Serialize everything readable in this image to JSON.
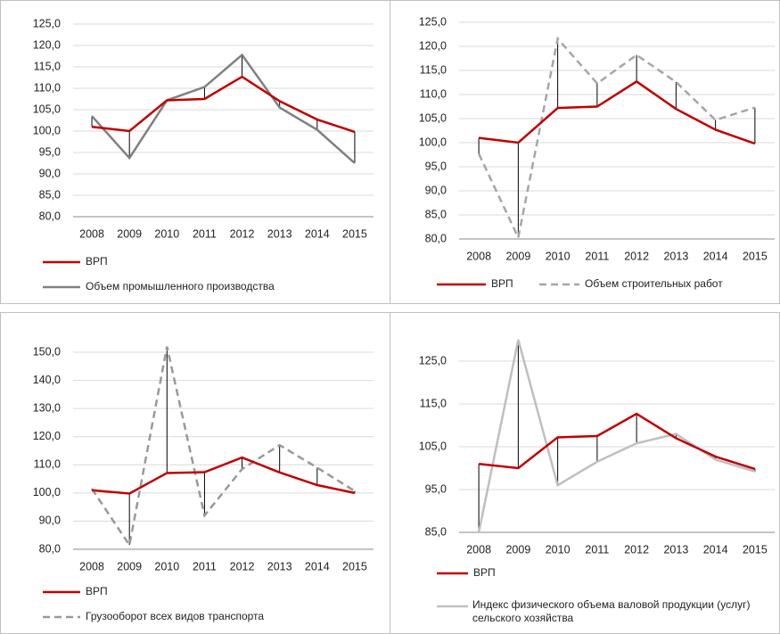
{
  "chart_data": [
    {
      "type": "line",
      "categories": [
        "2008",
        "2009",
        "2010",
        "2011",
        "2012",
        "2013",
        "2014",
        "2015"
      ],
      "series": [
        {
          "name": "ВРП",
          "color": "#c00000",
          "dash": "solid",
          "values": [
            101,
            100,
            107.2,
            107.5,
            112.7,
            107,
            102.7,
            99.8
          ]
        },
        {
          "name": "Объем промышленного производства",
          "color": "#808080",
          "dash": "solid",
          "values": [
            103.5,
            93.7,
            107.2,
            110.3,
            117.8,
            105.5,
            100.3,
            92.5
          ]
        }
      ],
      "ylim": [
        80,
        125
      ],
      "yticks": [
        {
          "value": 80,
          "label": "80,0"
        },
        {
          "value": 85,
          "label": "85,0"
        },
        {
          "value": 90,
          "label": "90,0"
        },
        {
          "value": 95,
          "label": "95,0"
        },
        {
          "value": 100,
          "label": "100,0"
        },
        {
          "value": 105,
          "label": "105,0"
        },
        {
          "value": 110,
          "label": "110,0"
        },
        {
          "value": 115,
          "label": "115,0"
        },
        {
          "value": 120,
          "label": "120,0"
        },
        {
          "value": 125,
          "label": "125,0"
        }
      ],
      "grid": true,
      "drop_lines": true,
      "legend": "bottom"
    },
    {
      "type": "line",
      "categories": [
        "2008",
        "2009",
        "2010",
        "2011",
        "2012",
        "2013",
        "2014",
        "2015"
      ],
      "series": [
        {
          "name": "ВРП",
          "color": "#c00000",
          "dash": "solid",
          "values": [
            101,
            100,
            107.2,
            107.5,
            112.7,
            107,
            102.7,
            99.8
          ]
        },
        {
          "name": "Объем строительных работ",
          "color": "#a6a6a6",
          "dash": "dashed",
          "values": [
            97.7,
            80.3,
            121.6,
            112.3,
            118.2,
            112.6,
            104.7,
            107.3
          ]
        }
      ],
      "ylim": [
        80,
        125
      ],
      "yticks": [
        {
          "value": 80,
          "label": "80,0"
        },
        {
          "value": 85,
          "label": "85,0"
        },
        {
          "value": 90,
          "label": "90,0"
        },
        {
          "value": 95,
          "label": "95,0"
        },
        {
          "value": 100,
          "label": "100,0"
        },
        {
          "value": 105,
          "label": "105,0"
        },
        {
          "value": 110,
          "label": "110,0"
        },
        {
          "value": 115,
          "label": "115,0"
        },
        {
          "value": 120,
          "label": "120,0"
        },
        {
          "value": 125,
          "label": "125,0"
        }
      ],
      "grid": true,
      "drop_lines": true,
      "legend": "bottom"
    },
    {
      "type": "line",
      "categories": [
        "2008",
        "2009",
        "2010",
        "2011",
        "2012",
        "2013",
        "2014",
        "2015"
      ],
      "series": [
        {
          "name": "ВРП",
          "color": "#c00000",
          "dash": "solid",
          "values": [
            101,
            99.8,
            107.1,
            107.4,
            112.6,
            107.3,
            102.8,
            100
          ]
        },
        {
          "name": "Грузооборот всех видов транспорта",
          "color": "#999999",
          "dash": "dashed",
          "values": [
            101.5,
            81.5,
            152,
            92,
            108.5,
            117,
            109,
            100.7
          ]
        }
      ],
      "ylim": [
        80,
        150
      ],
      "yticks": [
        {
          "value": 80,
          "label": "80,0"
        },
        {
          "value": 90,
          "label": "90,0"
        },
        {
          "value": 100,
          "label": "100,0"
        },
        {
          "value": 110,
          "label": "110,0"
        },
        {
          "value": 120,
          "label": "120,0"
        },
        {
          "value": 130,
          "label": "130,0"
        },
        {
          "value": 140,
          "label": "140,0"
        },
        {
          "value": 150,
          "label": "150,0"
        }
      ],
      "grid": true,
      "drop_lines": true,
      "legend": "bottom"
    },
    {
      "type": "line",
      "categories": [
        "2008",
        "2009",
        "2010",
        "2011",
        "2012",
        "2013",
        "2014",
        "2015"
      ],
      "series": [
        {
          "name": "ВРП",
          "color": "#c00000",
          "dash": "solid",
          "values": [
            101,
            100,
            107.2,
            107.5,
            112.7,
            107,
            102.7,
            99.8
          ]
        },
        {
          "name": "Индекс физического объема валовой продукции (услуг) сельского хозяйства",
          "color": "#bfbfbf",
          "dash": "solid",
          "values": [
            85,
            130,
            96,
            101.5,
            105.8,
            108,
            102,
            99.2
          ]
        }
      ],
      "ylim": [
        85,
        130
      ],
      "yticks": [
        {
          "value": 85,
          "label": "85,0"
        },
        {
          "value": 95,
          "label": "95,0"
        },
        {
          "value": 105,
          "label": "105,0"
        },
        {
          "value": 115,
          "label": "115,0"
        },
        {
          "value": 125,
          "label": "125,0"
        }
      ],
      "grid": true,
      "drop_lines": true,
      "legend": "bottom"
    }
  ]
}
